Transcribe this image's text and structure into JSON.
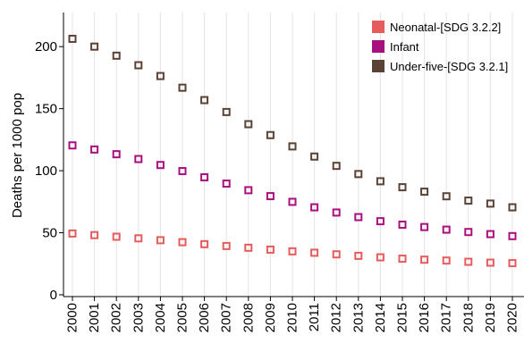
{
  "chart_data": {
    "type": "scatter",
    "title": "",
    "xlabel": "",
    "ylabel": "Deaths per 1000 pop",
    "ylim": [
      0,
      250
    ],
    "yticks": [
      0,
      50,
      100,
      150,
      200,
      250
    ],
    "grid": "vertical",
    "legend_position": "top-right",
    "categories": [
      "2000",
      "2001",
      "2002",
      "2003",
      "2004",
      "2005",
      "2006",
      "2007",
      "2008",
      "2009",
      "2010",
      "2011",
      "2012",
      "2013",
      "2014",
      "2015",
      "2016",
      "2017",
      "2018",
      "2019",
      "2020"
    ],
    "series": [
      {
        "name": "Neonatal-[SDG 3.2.2]",
        "color": "#e65c5c",
        "values": [
          49.4,
          48.1,
          46.8,
          45.5,
          44.0,
          42.4,
          40.8,
          39.3,
          37.9,
          36.4,
          35.0,
          33.9,
          32.6,
          31.4,
          30.2,
          29.1,
          28.3,
          27.6,
          26.6,
          25.9,
          25.5
        ]
      },
      {
        "name": "Infant",
        "color": "#a8107f",
        "values": [
          120.4,
          117.1,
          113.3,
          109.4,
          104.6,
          99.7,
          94.7,
          89.6,
          84.3,
          79.5,
          74.9,
          70.5,
          66.3,
          62.6,
          59.3,
          56.5,
          54.6,
          52.5,
          50.6,
          48.9,
          47.3
        ]
      },
      {
        "name": "Under-five-[SDG 3.2.1]",
        "color": "#5a4336",
        "values": [
          206.3,
          200.0,
          192.7,
          185.0,
          176.3,
          166.9,
          156.9,
          147.3,
          137.5,
          128.7,
          119.6,
          111.4,
          103.9,
          97.3,
          91.5,
          86.7,
          83.1,
          79.4,
          75.9,
          73.5,
          70.5
        ]
      }
    ]
  }
}
